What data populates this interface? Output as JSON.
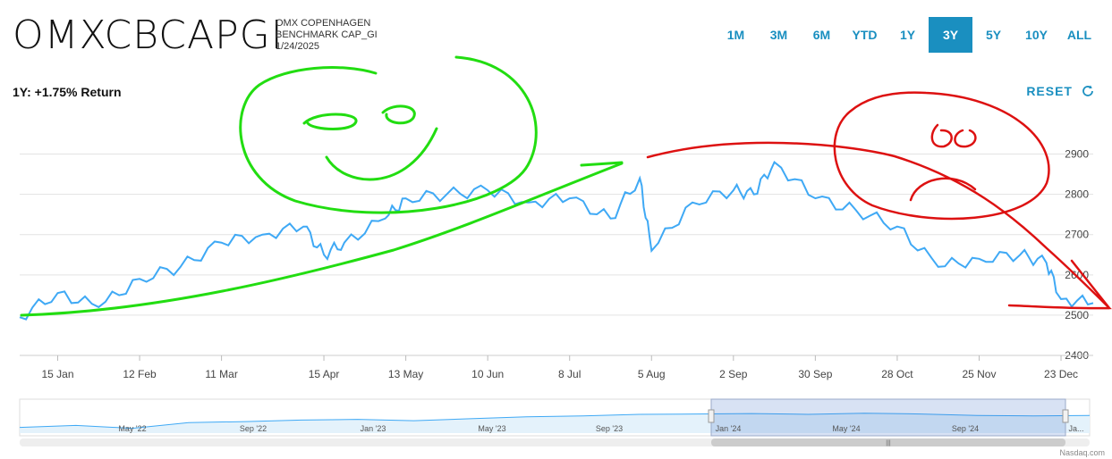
{
  "header": {
    "symbol": "OMXCBCAPGI",
    "name_line1": "OMX COPENHAGEN",
    "name_line2": "BENCHMARK CAP_GI",
    "date": "1/24/2025"
  },
  "ranges": [
    "1M",
    "3M",
    "6M",
    "YTD",
    "1Y",
    "3Y",
    "5Y",
    "10Y",
    "ALL"
  ],
  "active_range": "3Y",
  "return_label": "1Y: +1.75% Return",
  "reset_label": "RESET",
  "credit": "Nasdaq.com",
  "colors": {
    "accent": "#1a8fc0",
    "line": "#3fa9f5",
    "annot_green": "#22dd11",
    "annot_red": "#dd1111"
  },
  "chart_data": {
    "type": "line",
    "ylim": [
      2400,
      2950
    ],
    "yticks": [
      2400,
      2500,
      2600,
      2700,
      2800,
      2900
    ],
    "xticks": [
      "15 Jan",
      "12 Feb",
      "11 Mar",
      "15 Apr",
      "13 May",
      "10 Jun",
      "8 Jul",
      "5 Aug",
      "2 Sep",
      "30 Sep",
      "28 Oct",
      "25 Nov",
      "23 Dec"
    ],
    "x": [
      "2024-01-02",
      "2024-01-15",
      "2024-01-29",
      "2024-02-12",
      "2024-02-26",
      "2024-03-11",
      "2024-03-25",
      "2024-04-08",
      "2024-04-15",
      "2024-04-22",
      "2024-05-06",
      "2024-05-13",
      "2024-05-27",
      "2024-06-10",
      "2024-06-24",
      "2024-07-08",
      "2024-07-22",
      "2024-08-01",
      "2024-08-05",
      "2024-08-19",
      "2024-09-02",
      "2024-09-09",
      "2024-09-16",
      "2024-09-30",
      "2024-10-14",
      "2024-10-28",
      "2024-11-11",
      "2024-11-25",
      "2024-12-09",
      "2024-12-18",
      "2024-12-23",
      "2025-01-03"
    ],
    "series": [
      {
        "values": [
          2495,
          2555,
          2520,
          2590,
          2620,
          2680,
          2700,
          2720,
          2650,
          2680,
          2740,
          2790,
          2800,
          2810,
          2780,
          2790,
          2740,
          2840,
          2660,
          2780,
          2810,
          2800,
          2880,
          2790,
          2760,
          2720,
          2620,
          2640,
          2650,
          2630,
          2540,
          2530
        ]
      }
    ],
    "navigator": {
      "labels": [
        "May '22",
        "Sep '22",
        "Jan '23",
        "May '23",
        "Sep '23",
        "Jan '24",
        "May '24",
        "Sep '24",
        "Ja..."
      ],
      "values": [
        2410,
        2420,
        2405,
        2435,
        2440,
        2448,
        2452,
        2445,
        2455,
        2465,
        2470,
        2478,
        2480,
        2482,
        2478,
        2484,
        2480,
        2472,
        2470,
        2472
      ]
    }
  }
}
